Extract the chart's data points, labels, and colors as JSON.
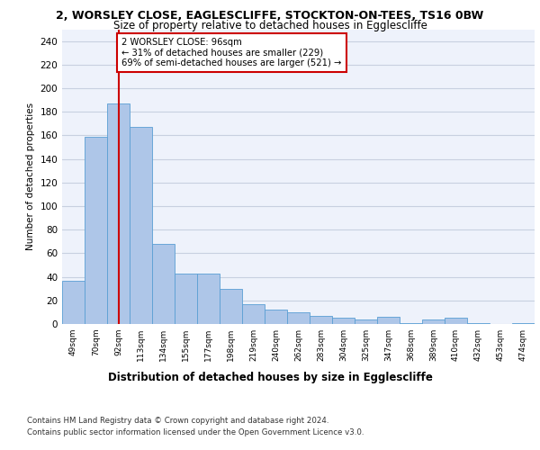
{
  "title1": "2, WORSLEY CLOSE, EAGLESCLIFFE, STOCKTON-ON-TEES, TS16 0BW",
  "title2": "Size of property relative to detached houses in Egglescliffe",
  "xlabel": "Distribution of detached houses by size in Egglescliffe",
  "ylabel": "Number of detached properties",
  "categories": [
    "49sqm",
    "70sqm",
    "92sqm",
    "113sqm",
    "134sqm",
    "155sqm",
    "177sqm",
    "198sqm",
    "219sqm",
    "240sqm",
    "262sqm",
    "283sqm",
    "304sqm",
    "325sqm",
    "347sqm",
    "368sqm",
    "389sqm",
    "410sqm",
    "432sqm",
    "453sqm",
    "474sqm"
  ],
  "values": [
    37,
    159,
    187,
    167,
    68,
    43,
    43,
    30,
    17,
    12,
    10,
    7,
    5,
    4,
    6,
    1,
    4,
    5,
    1,
    0,
    1
  ],
  "bar_color": "#aec6e8",
  "bar_edge_color": "#5a9fd4",
  "redline_x": 2,
  "annotation_text": "2 WORSLEY CLOSE: 96sqm\n← 31% of detached houses are smaller (229)\n69% of semi-detached houses are larger (521) →",
  "annotation_box_color": "#ffffff",
  "annotation_box_edge": "#cc0000",
  "redline_color": "#cc0000",
  "footer1": "Contains HM Land Registry data © Crown copyright and database right 2024.",
  "footer2": "Contains public sector information licensed under the Open Government Licence v3.0.",
  "ylim": [
    0,
    250
  ],
  "yticks": [
    0,
    20,
    40,
    60,
    80,
    100,
    120,
    140,
    160,
    180,
    200,
    220,
    240
  ],
  "grid_color": "#c8d0e0",
  "background_color": "#eef2fb"
}
